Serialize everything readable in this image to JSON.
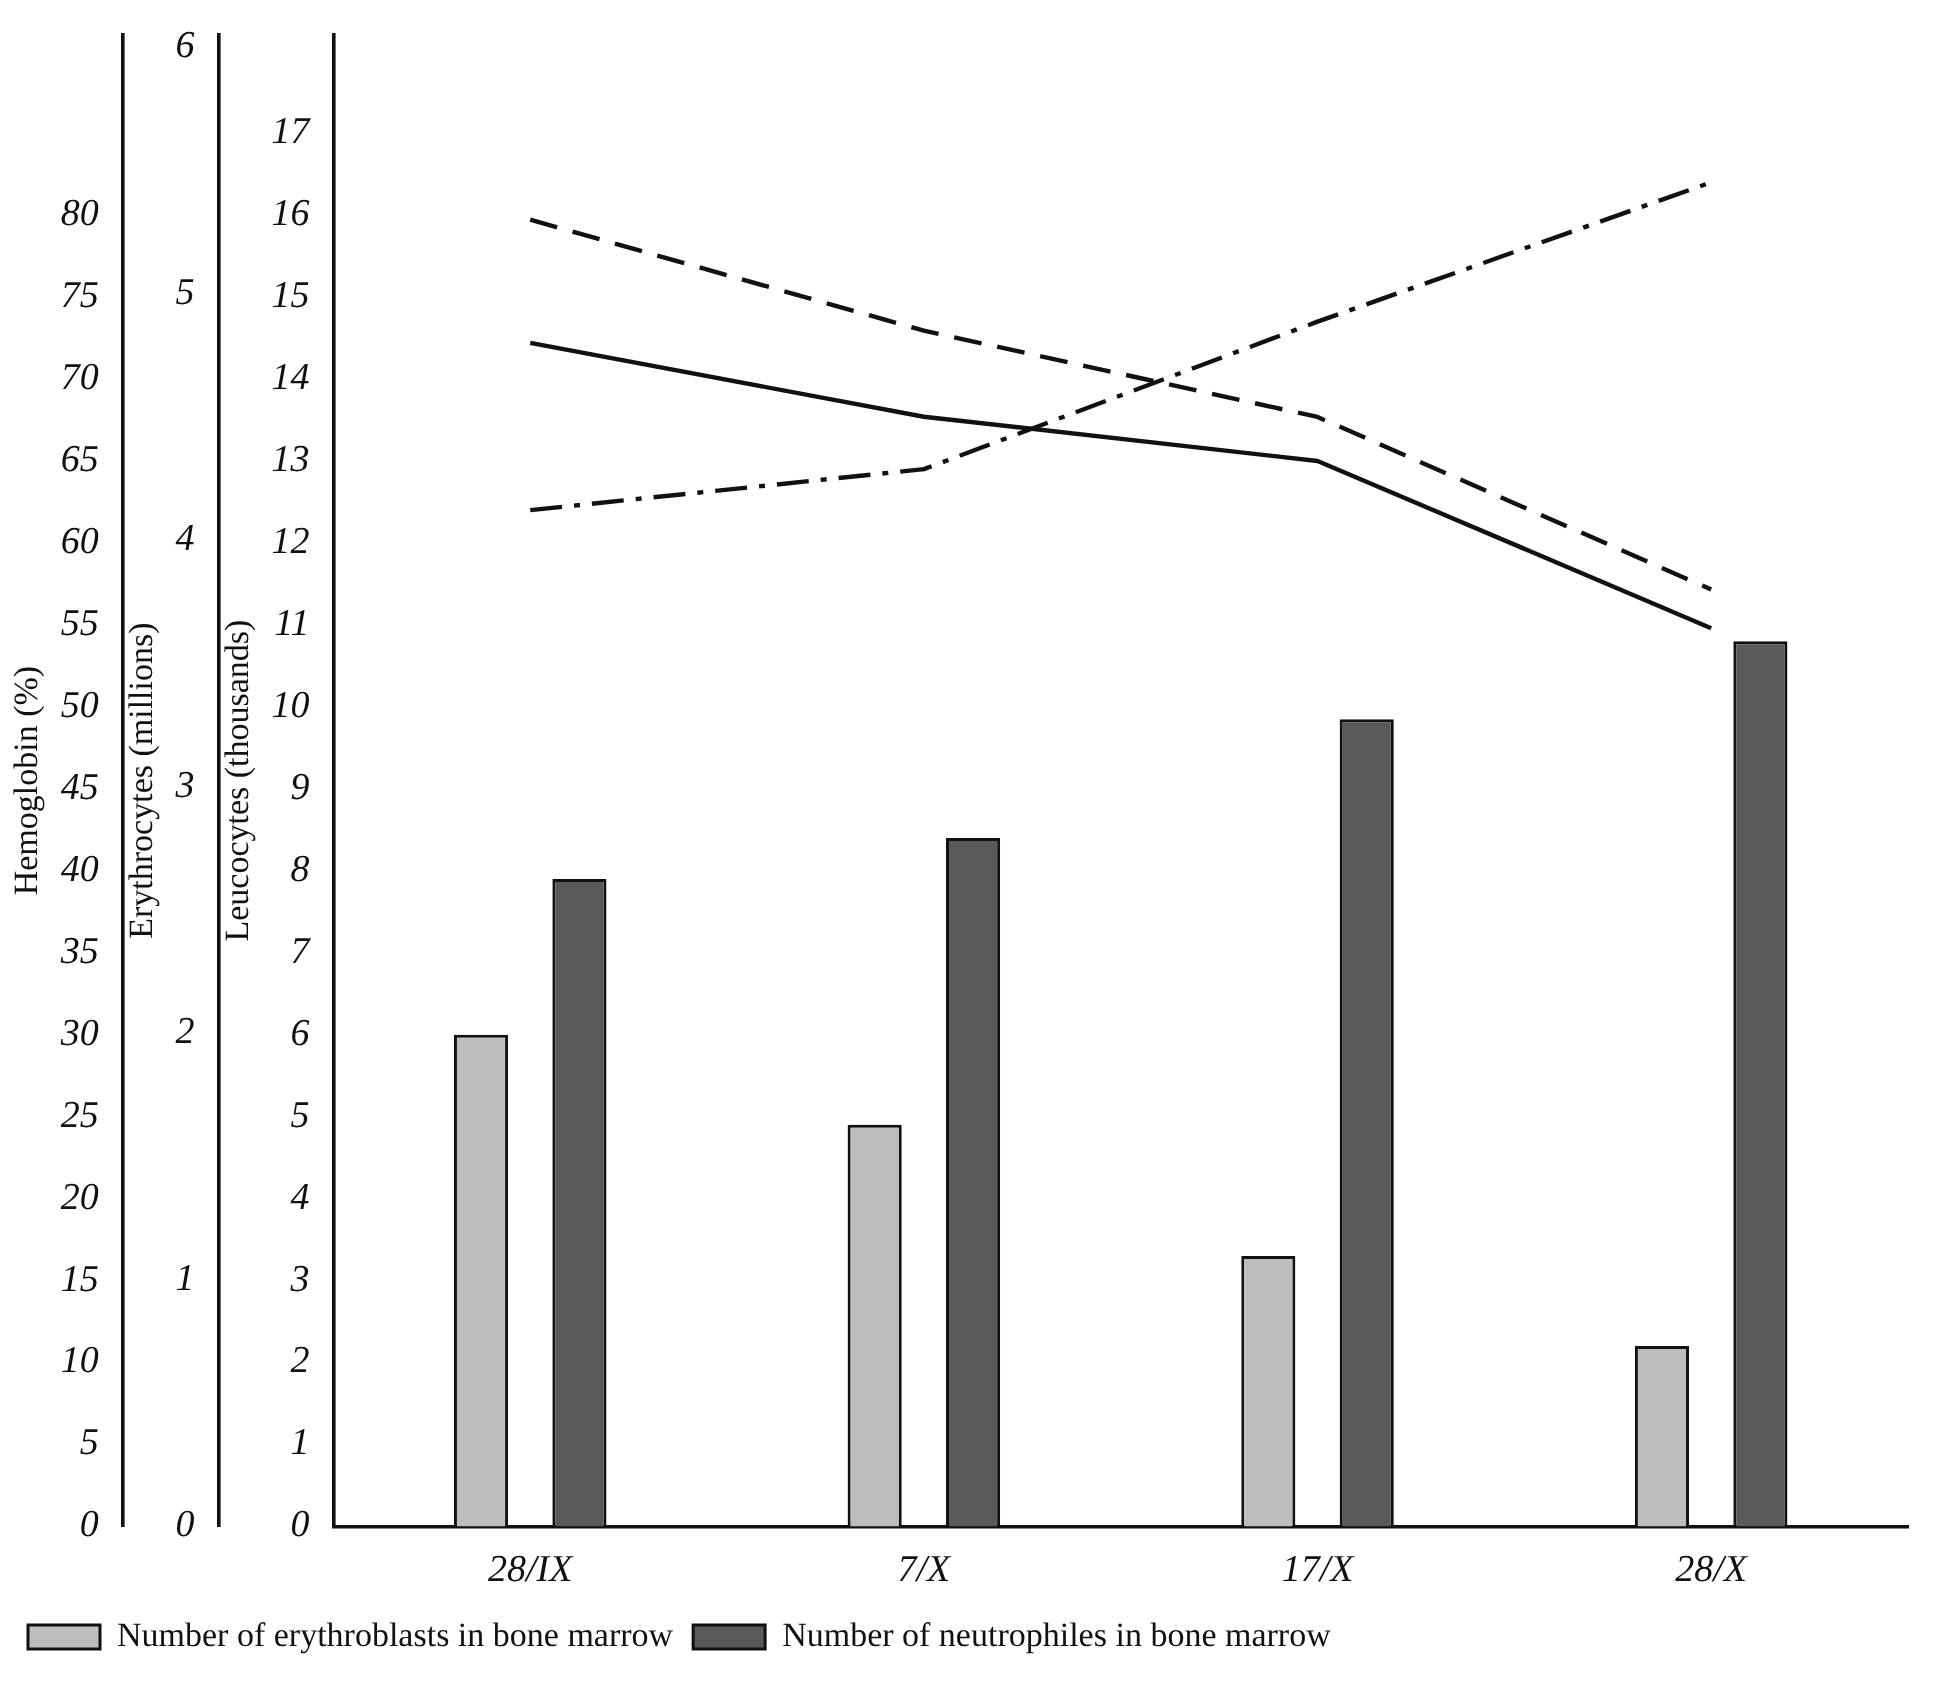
{
  "chart_data": {
    "type": "bar",
    "categories": [
      "28/IX",
      "7/X",
      "17/X",
      "28/X"
    ],
    "ylabel": "Hemoglobin (%)",
    "ylim": [
      0,
      91
    ],
    "yticks": [
      0,
      5,
      10,
      15,
      20,
      25,
      30,
      35,
      40,
      45,
      50,
      55,
      60,
      65,
      70,
      75,
      80
    ],
    "y2label": "Erythrocytes (millions)",
    "y2lim": [
      0,
      6.05
    ],
    "y2ticks": [
      0,
      1,
      2,
      3,
      4,
      5,
      6
    ],
    "y3label": "Leucocytes (thousands)",
    "y3lim": [
      0,
      18.2
    ],
    "y3ticks": [
      0,
      1,
      2,
      3,
      4,
      5,
      6,
      7,
      8,
      9,
      10,
      11,
      12,
      13,
      14,
      15,
      16,
      17
    ],
    "series": [
      {
        "axis": "y3",
        "name": "Number of erythroblasts in bone marrow",
        "color": "#bdbdbd",
        "values": [
          6.0,
          4.9,
          3.3,
          2.2
        ]
      },
      {
        "axis": "y3",
        "name": "Number of neutrophiles in bone marrow",
        "color": "#595959",
        "values": [
          7.9,
          8.4,
          9.85,
          10.8
        ]
      },
      {
        "type": "line",
        "axis": "y",
        "line_style": "solid",
        "color": "#111111",
        "values": [
          72.2,
          67.7,
          65.0,
          54.8
        ]
      },
      {
        "type": "line",
        "axis": "y2",
        "line_style": "dashed",
        "color": "#111111",
        "values": [
          5.3,
          4.85,
          4.5,
          3.8
        ]
      },
      {
        "type": "line",
        "axis": "y3",
        "line_style": "dashdot",
        "color": "#111111",
        "values": [
          12.4,
          12.9,
          14.7,
          16.4
        ]
      }
    ],
    "grid": false,
    "legend": "bottom left",
    "marker": "none"
  }
}
